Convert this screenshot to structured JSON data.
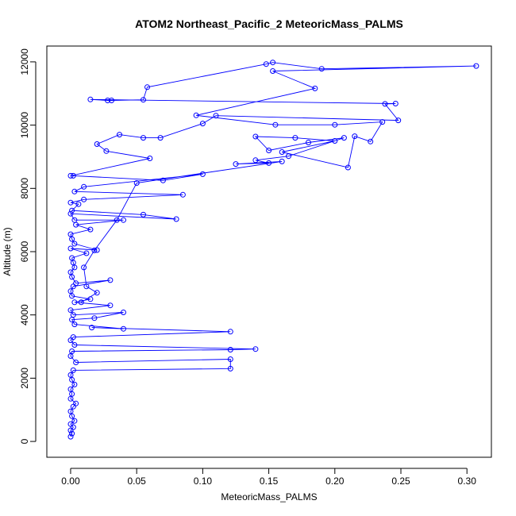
{
  "chart_data": {
    "type": "line",
    "title": "ATOM2 Northeast_Pacific_2 MeteoricMass_PALMS",
    "xlabel": "MeteoricMass_PALMS",
    "ylabel": "Altitude (m)",
    "xlim": [
      -0.018,
      0.3185
    ],
    "ylim": [
      -500,
      12500
    ],
    "xticks": [
      0.0,
      0.05,
      0.1,
      0.15,
      0.2,
      0.25,
      0.3
    ],
    "xtick_labels": [
      "0.00",
      "0.05",
      "0.10",
      "0.15",
      "0.20",
      "0.25",
      "0.30"
    ],
    "yticks": [
      0,
      2000,
      4000,
      6000,
      8000,
      10000,
      12000
    ],
    "ytick_labels": [
      "0",
      "2000",
      "4000",
      "6000",
      "8000",
      "10000",
      "12000"
    ],
    "grid": false,
    "marker": "open-circle",
    "series_color": "#0000ff",
    "points": [
      [
        0.0,
        150
      ],
      [
        0.001,
        250
      ],
      [
        0.0,
        350
      ],
      [
        0.002,
        450
      ],
      [
        0.0,
        550
      ],
      [
        0.003,
        650
      ],
      [
        0.001,
        800
      ],
      [
        0.0,
        950
      ],
      [
        0.002,
        1100
      ],
      [
        0.004,
        1200
      ],
      [
        0.0,
        1350
      ],
      [
        0.001,
        1500
      ],
      [
        0.0,
        1650
      ],
      [
        0.003,
        1800
      ],
      [
        0.001,
        1950
      ],
      [
        0.0,
        2100
      ],
      [
        0.002,
        2250
      ],
      [
        0.121,
        2300
      ],
      [
        0.121,
        2600
      ],
      [
        0.004,
        2500
      ],
      [
        0.0,
        2700
      ],
      [
        0.001,
        2850
      ],
      [
        0.121,
        2900
      ],
      [
        0.14,
        2920
      ],
      [
        0.003,
        3050
      ],
      [
        0.0,
        3200
      ],
      [
        0.002,
        3300
      ],
      [
        0.121,
        3470
      ],
      [
        0.016,
        3600
      ],
      [
        0.04,
        3560
      ],
      [
        0.003,
        3700
      ],
      [
        0.001,
        3850
      ],
      [
        0.018,
        3900
      ],
      [
        0.04,
        4080
      ],
      [
        0.002,
        4000
      ],
      [
        0.0,
        4150
      ],
      [
        0.03,
        4300
      ],
      [
        0.003,
        4400
      ],
      [
        0.015,
        4500
      ],
      [
        0.001,
        4600
      ],
      [
        0.0,
        4750
      ],
      [
        0.002,
        4900
      ],
      [
        0.03,
        5100
      ],
      [
        0.004,
        5000
      ],
      [
        0.001,
        5200
      ],
      [
        0.0,
        5350
      ],
      [
        0.003,
        5500
      ],
      [
        0.002,
        5650
      ],
      [
        0.001,
        5800
      ],
      [
        0.012,
        5950
      ],
      [
        0.0,
        6100
      ],
      [
        0.02,
        6050
      ],
      [
        0.003,
        6250
      ],
      [
        0.001,
        6400
      ],
      [
        0.0,
        6550
      ],
      [
        0.015,
        6700
      ],
      [
        0.004,
        6850
      ],
      [
        0.04,
        7000
      ],
      [
        0.003,
        7000
      ],
      [
        0.0,
        7200
      ],
      [
        0.08,
        7030
      ],
      [
        0.055,
        7170
      ],
      [
        0.001,
        7300
      ],
      [
        0.006,
        7500
      ],
      [
        0.0,
        7550
      ],
      [
        0.01,
        7650
      ],
      [
        0.085,
        7800
      ],
      [
        0.003,
        7900
      ],
      [
        0.01,
        8050
      ],
      [
        0.1,
        8450
      ],
      [
        0.07,
        8250
      ],
      [
        0.002,
        8400
      ],
      [
        0.0,
        8400
      ],
      [
        0.06,
        8950
      ],
      [
        0.027,
        9180
      ],
      [
        0.02,
        9400
      ],
      [
        0.037,
        9700
      ],
      [
        0.055,
        9600
      ],
      [
        0.068,
        9600
      ],
      [
        0.1,
        10050
      ],
      [
        0.11,
        10300
      ],
      [
        0.248,
        10150
      ],
      [
        0.238,
        10670
      ],
      [
        0.246,
        10680
      ],
      [
        0.015,
        10810
      ],
      [
        0.028,
        10780
      ],
      [
        0.031,
        10780
      ],
      [
        0.055,
        10800
      ],
      [
        0.058,
        11200
      ],
      [
        0.148,
        11930
      ],
      [
        0.153,
        11980
      ],
      [
        0.19,
        11780
      ],
      [
        0.307,
        11870
      ],
      [
        0.153,
        11710
      ],
      [
        0.185,
        11160
      ],
      [
        0.095,
        10310
      ],
      [
        0.155,
        10010
      ],
      [
        0.2,
        10010
      ],
      [
        0.236,
        10100
      ],
      [
        0.227,
        9480
      ],
      [
        0.215,
        9650
      ],
      [
        0.21,
        8660
      ],
      [
        0.16,
        9150
      ],
      [
        0.2,
        9500
      ],
      [
        0.17,
        9600
      ],
      [
        0.14,
        9640
      ],
      [
        0.15,
        9200
      ],
      [
        0.18,
        9450
      ],
      [
        0.207,
        9600
      ],
      [
        0.165,
        9020
      ],
      [
        0.14,
        8890
      ],
      [
        0.15,
        8800
      ],
      [
        0.125,
        8770
      ],
      [
        0.16,
        8850
      ],
      [
        0.05,
        8170
      ],
      [
        0.035,
        7000
      ],
      [
        0.018,
        6040
      ],
      [
        0.01,
        5500
      ],
      [
        0.012,
        4900
      ],
      [
        0.02,
        4700
      ],
      [
        0.008,
        4400
      ]
    ]
  }
}
